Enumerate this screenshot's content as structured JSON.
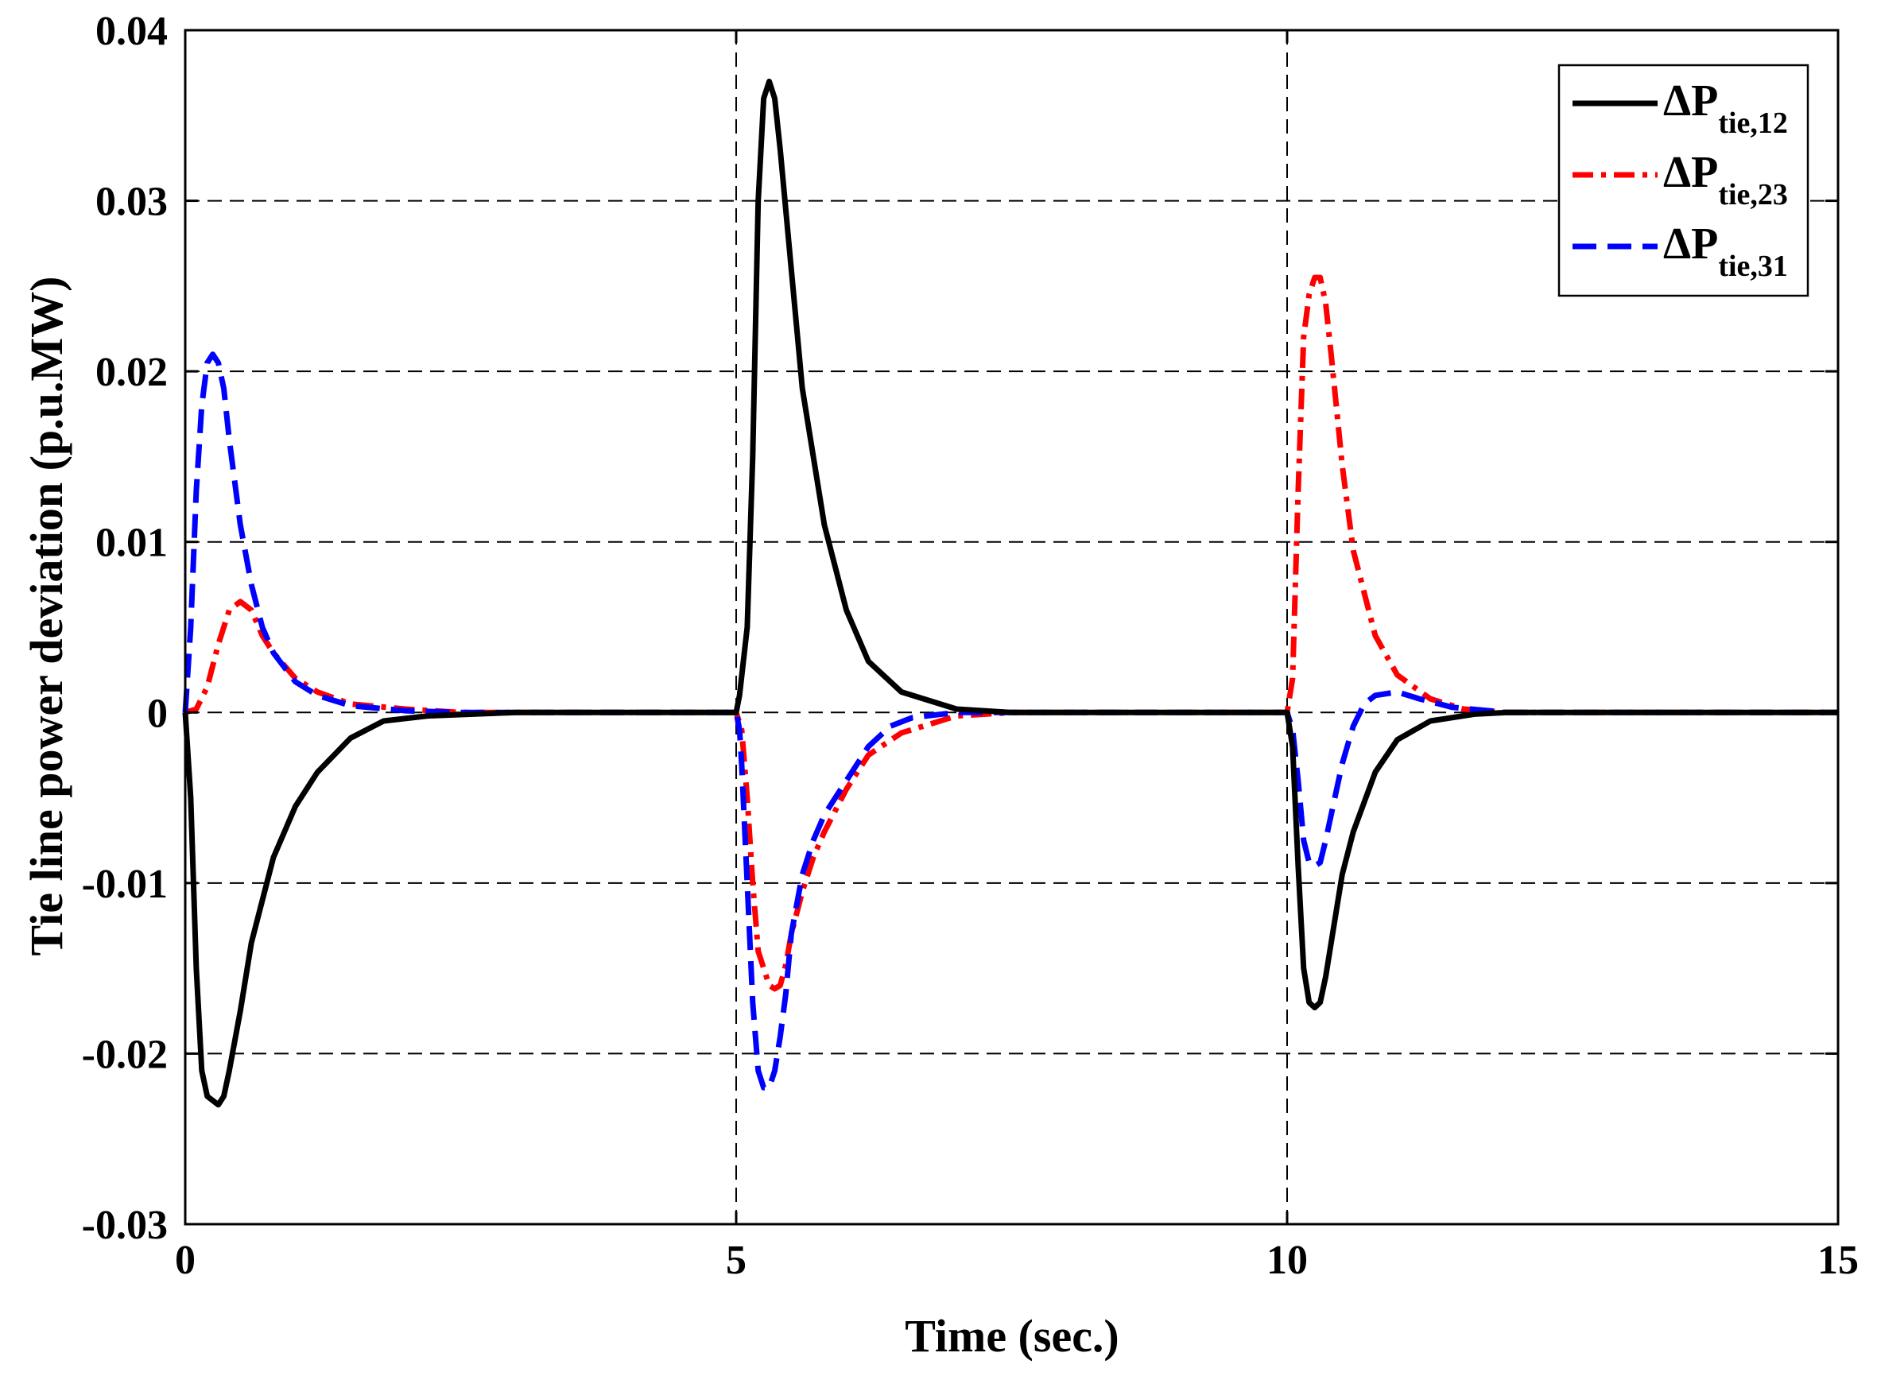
{
  "chart_data": {
    "type": "line",
    "title": "",
    "xlabel": "Time (sec.)",
    "ylabel": "Tie line power deviation (p.u.MW)",
    "xlim": [
      0,
      15
    ],
    "ylim": [
      -0.03,
      0.04
    ],
    "xticks": [
      0,
      5,
      10,
      15
    ],
    "xtick_labels": [
      "0",
      "5",
      "10",
      "15"
    ],
    "yticks": [
      -0.03,
      -0.02,
      -0.01,
      0,
      0.01,
      0.02,
      0.03,
      0.04
    ],
    "ytick_labels": [
      "-0.03",
      "-0.02",
      "-0.01",
      "0",
      "0.01",
      "0.02",
      "0.03",
      "0.04"
    ],
    "grid": true,
    "legend_position": "top-right",
    "series": [
      {
        "name": "ΔP_tie,12",
        "legend_main": "ΔP",
        "legend_sub": "tie,12",
        "color": "#000000",
        "style": "solid",
        "x": [
          0,
          0.05,
          0.1,
          0.15,
          0.2,
          0.3,
          0.35,
          0.4,
          0.5,
          0.6,
          0.8,
          1.0,
          1.2,
          1.5,
          1.8,
          2.2,
          3.0,
          5.0,
          5.03,
          5.1,
          5.15,
          5.2,
          5.25,
          5.3,
          5.35,
          5.4,
          5.5,
          5.6,
          5.8,
          6.0,
          6.2,
          6.5,
          7.0,
          7.5,
          8.0,
          10.0,
          10.05,
          10.1,
          10.15,
          10.2,
          10.25,
          10.3,
          10.35,
          10.4,
          10.5,
          10.6,
          10.8,
          11.0,
          11.3,
          11.7,
          12.0,
          15.0
        ],
        "y": [
          0,
          -0.005,
          -0.015,
          -0.021,
          -0.0225,
          -0.023,
          -0.0225,
          -0.021,
          -0.0175,
          -0.0135,
          -0.0085,
          -0.0055,
          -0.0035,
          -0.0015,
          -0.0005,
          -0.0002,
          0,
          0,
          0.001,
          0.005,
          0.015,
          0.03,
          0.036,
          0.037,
          0.036,
          0.033,
          0.026,
          0.019,
          0.011,
          0.006,
          0.003,
          0.0012,
          0.0002,
          0,
          0,
          0,
          -0.002,
          -0.009,
          -0.015,
          -0.017,
          -0.0173,
          -0.017,
          -0.0155,
          -0.0135,
          -0.0095,
          -0.007,
          -0.0035,
          -0.0016,
          -0.0005,
          -0.0001,
          0,
          0
        ]
      },
      {
        "name": "ΔP_tie,23",
        "legend_main": "ΔP",
        "legend_sub": "tie,23",
        "color": "#ff0000",
        "style": "dashdot",
        "x": [
          0,
          0.1,
          0.2,
          0.3,
          0.4,
          0.5,
          0.6,
          0.7,
          0.8,
          1.0,
          1.2,
          1.5,
          2.0,
          2.5,
          3.0,
          4.0,
          5.0,
          5.05,
          5.1,
          5.15,
          5.2,
          5.3,
          5.35,
          5.4,
          5.45,
          5.5,
          5.6,
          5.7,
          5.8,
          6.0,
          6.2,
          6.5,
          7.0,
          7.5,
          8.0,
          9.0,
          10.0,
          10.05,
          10.1,
          10.15,
          10.2,
          10.25,
          10.3,
          10.35,
          10.4,
          10.5,
          10.6,
          10.8,
          11.0,
          11.3,
          11.6,
          12.0,
          13.0,
          15.0
        ],
        "y": [
          0,
          0.0002,
          0.0015,
          0.004,
          0.006,
          0.0065,
          0.006,
          0.0045,
          0.0035,
          0.002,
          0.0012,
          0.0005,
          0.0002,
          0,
          0,
          0,
          0,
          -0.001,
          -0.005,
          -0.01,
          -0.014,
          -0.016,
          -0.0162,
          -0.016,
          -0.0148,
          -0.013,
          -0.0105,
          -0.0085,
          -0.007,
          -0.0045,
          -0.0025,
          -0.0012,
          -0.0002,
          0,
          0,
          0,
          0,
          0.002,
          0.013,
          0.022,
          0.0245,
          0.0255,
          0.0255,
          0.024,
          0.021,
          0.0145,
          0.0095,
          0.0045,
          0.0022,
          0.0008,
          0.0002,
          0,
          0,
          0
        ]
      },
      {
        "name": "ΔP_tie,31",
        "legend_main": "ΔP",
        "legend_sub": "tie,31",
        "color": "#0000ff",
        "style": "dashed",
        "x": [
          0,
          0.05,
          0.1,
          0.15,
          0.2,
          0.25,
          0.3,
          0.35,
          0.4,
          0.5,
          0.6,
          0.7,
          0.8,
          1.0,
          1.2,
          1.5,
          2.0,
          2.5,
          3.0,
          5.0,
          5.03,
          5.05,
          5.1,
          5.15,
          5.2,
          5.25,
          5.3,
          5.35,
          5.4,
          5.45,
          5.5,
          5.6,
          5.7,
          5.8,
          6.0,
          6.2,
          6.4,
          6.6,
          7.0,
          7.5,
          10.0,
          10.05,
          10.1,
          10.15,
          10.2,
          10.25,
          10.3,
          10.35,
          10.4,
          10.5,
          10.6,
          10.7,
          10.8,
          11.0,
          11.2,
          11.5,
          12.0,
          15.0
        ],
        "y": [
          0,
          0.005,
          0.013,
          0.018,
          0.0205,
          0.021,
          0.0205,
          0.019,
          0.016,
          0.011,
          0.0075,
          0.005,
          0.0035,
          0.0018,
          0.001,
          0.0004,
          0.0001,
          0,
          0,
          0,
          -0.001,
          -0.003,
          -0.01,
          -0.017,
          -0.021,
          -0.022,
          -0.022,
          -0.021,
          -0.019,
          -0.0165,
          -0.013,
          -0.0095,
          -0.0075,
          -0.006,
          -0.004,
          -0.002,
          -0.0008,
          -0.0003,
          0,
          0,
          0,
          -0.001,
          -0.004,
          -0.0075,
          -0.0088,
          -0.009,
          -0.0088,
          -0.0075,
          -0.006,
          -0.003,
          -0.0008,
          0.0005,
          0.001,
          0.0012,
          0.0008,
          0.0003,
          0,
          0
        ]
      }
    ]
  }
}
